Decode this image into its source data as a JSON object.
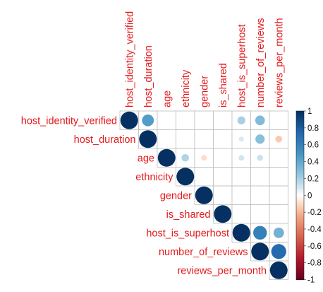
{
  "chart_data": {
    "type": "heatmap",
    "subtype": "correlation-matrix-upper-circles",
    "variables": [
      "host_identity_verified",
      "host_duration",
      "age",
      "ethnicity",
      "gender",
      "is_shared",
      "host_is_superhost",
      "number_of_reviews",
      "reviews_per_month"
    ],
    "correlations": [
      [
        1,
        0.45,
        null,
        null,
        null,
        null,
        0.2,
        0.3,
        null
      ],
      [
        null,
        1,
        null,
        null,
        null,
        null,
        0.08,
        0.28,
        -0.15
      ],
      [
        null,
        null,
        1,
        0.18,
        -0.1,
        null,
        0.1,
        0.12,
        null
      ],
      [
        null,
        null,
        null,
        1,
        null,
        null,
        null,
        null,
        null
      ],
      [
        null,
        null,
        null,
        null,
        1,
        null,
        null,
        null,
        null
      ],
      [
        null,
        null,
        null,
        null,
        null,
        1,
        null,
        null,
        null
      ],
      [
        null,
        null,
        null,
        null,
        null,
        null,
        1,
        0.6,
        0.35
      ],
      [
        null,
        null,
        null,
        null,
        null,
        null,
        null,
        1,
        0.72
      ],
      [
        null,
        null,
        null,
        null,
        null,
        null,
        null,
        null,
        1
      ]
    ],
    "colorbar": {
      "range": [
        -1,
        1
      ],
      "ticks": [
        "1",
        "0.8",
        "0.6",
        "0.4",
        "0.2",
        "0",
        "-0.2",
        "-0.4",
        "-0.6",
        "-0.8",
        "-1"
      ],
      "tick_values": [
        1,
        0.8,
        0.6,
        0.4,
        0.2,
        0,
        -0.2,
        -0.4,
        -0.6,
        -0.8,
        -1
      ]
    },
    "label_color": "#e31a1c",
    "grid": true
  }
}
